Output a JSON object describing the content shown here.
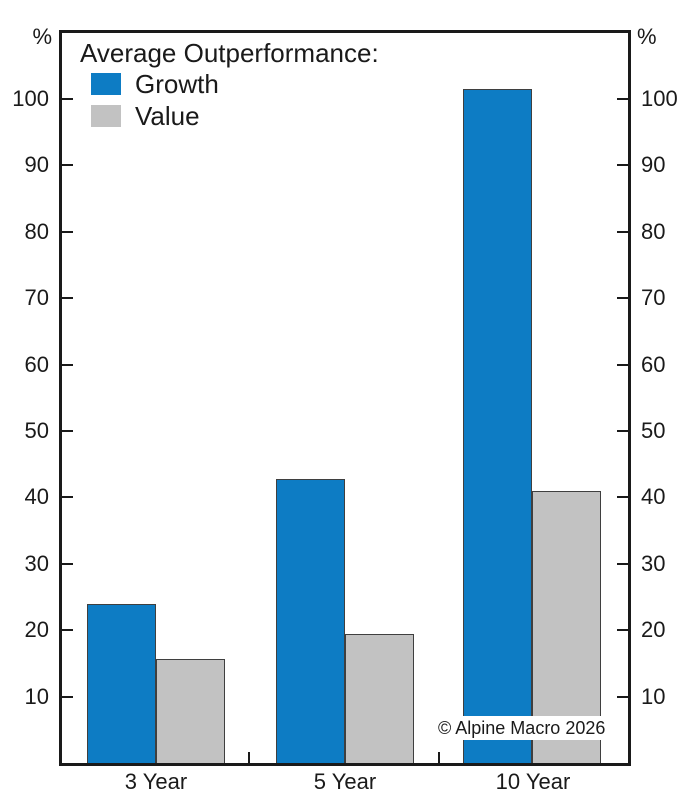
{
  "chart_data": {
    "type": "bar",
    "title": "Average Outperformance:",
    "categories": [
      "3 Year",
      "5 Year",
      "10 Year"
    ],
    "series": [
      {
        "name": "Growth",
        "color": "#0d7cc4",
        "values": [
          24,
          42.7,
          101.5
        ]
      },
      {
        "name": "Value",
        "color": "#c2c2c2",
        "values": [
          15.7,
          19.4,
          41
        ]
      }
    ],
    "xlabel": "",
    "ylabel": "%",
    "ylim": [
      0,
      110.4
    ],
    "y_ticks": [
      10,
      20,
      30,
      40,
      50,
      60,
      70,
      80,
      90,
      100
    ],
    "y_unit_left": "%",
    "y_unit_right": "%",
    "grid": false,
    "legend_position": "top-left"
  },
  "legend": {
    "title": "Average Outperformance:",
    "items": [
      {
        "label": "Growth",
        "color": "#0d7cc4"
      },
      {
        "label": "Value",
        "color": "#c2c2c2"
      }
    ]
  },
  "watermark": "© Alpine Macro 2026",
  "colors": {
    "growth_blue": "#0d7cc4",
    "value_gray": "#c2c2c2",
    "axis": "#1a1a1a",
    "bar_outline": "#3f3f3f"
  }
}
